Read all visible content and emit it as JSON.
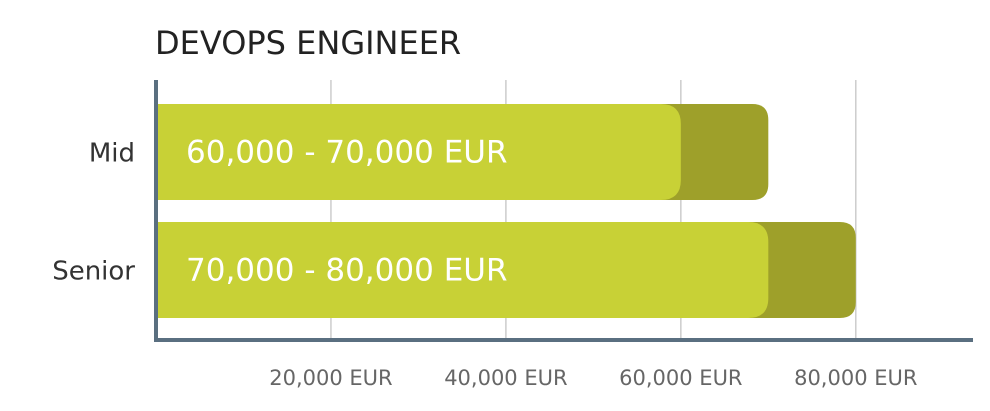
{
  "chart_data": {
    "type": "range-bar",
    "title": "DEVOPS ENGINEER",
    "categories": [
      "Mid",
      "Senior"
    ],
    "low": [
      60000,
      70000
    ],
    "high": [
      70000,
      80000
    ],
    "value_labels": [
      "60,000 - 70,000 EUR",
      "70,000 - 80,000 EUR"
    ],
    "colors": {
      "low": "#c8d136",
      "high": "#9ea02a"
    },
    "xlim": [
      0,
      93400
    ],
    "xticks": [
      {
        "value": 20000,
        "label": "20,000 EUR"
      },
      {
        "value": 40000,
        "label": "40,000 EUR"
      },
      {
        "value": 60000,
        "label": "60,000 EUR"
      },
      {
        "value": 80000,
        "label": "80,000 EUR"
      }
    ],
    "grid": true
  }
}
